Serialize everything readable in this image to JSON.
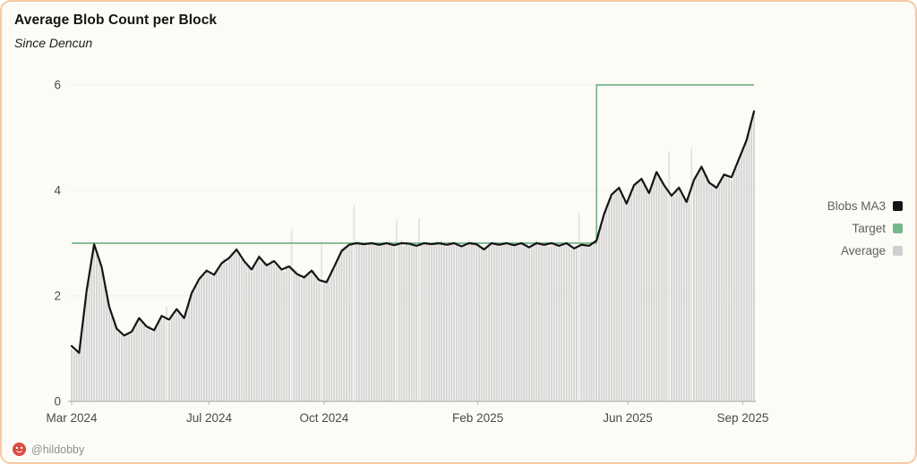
{
  "card": {
    "title": "Average Blob Count per Block",
    "subtitle": "Since Dencun",
    "author": "@hildobby"
  },
  "legend": [
    {
      "label": "Blobs MA3",
      "color": "#151515"
    },
    {
      "label": "Target",
      "color": "#76b789"
    },
    {
      "label": "Average",
      "color": "#cfcfcf"
    }
  ],
  "chart_data": {
    "type": "line",
    "title": "Average Blob Count per Block",
    "subtitle": "Since Dencun",
    "x_start": "2024-03-13",
    "x_step_days": 6,
    "x_total_days": 546,
    "ylim": [
      0,
      6
    ],
    "yticks": [
      0,
      2,
      4,
      6
    ],
    "xticks": [
      {
        "label": "Mar 2024",
        "day": 0
      },
      {
        "label": "Jul 2024",
        "day": 110
      },
      {
        "label": "Oct 2024",
        "day": 202
      },
      {
        "label": "Feb 2025",
        "day": 325
      },
      {
        "label": "Jun 2025",
        "day": 445
      },
      {
        "label": "Sep 2025",
        "day": 537
      }
    ],
    "grid": "horizontal-faint",
    "legend_position": "right",
    "series": [
      {
        "name": "Blobs MA3",
        "type": "line",
        "color": "#151515",
        "values": [
          1.05,
          0.92,
          2.1,
          2.98,
          2.55,
          1.8,
          1.38,
          1.25,
          1.32,
          1.58,
          1.42,
          1.35,
          1.62,
          1.55,
          1.75,
          1.58,
          2.05,
          2.32,
          2.48,
          2.4,
          2.62,
          2.72,
          2.88,
          2.66,
          2.5,
          2.74,
          2.58,
          2.66,
          2.5,
          2.56,
          2.42,
          2.35,
          2.48,
          2.3,
          2.26,
          2.55,
          2.85,
          2.97,
          3.0,
          2.98,
          3.0,
          2.97,
          3.0,
          2.96,
          3.0,
          2.99,
          2.95,
          3.0,
          2.98,
          3.0,
          2.97,
          3.0,
          2.94,
          3.0,
          2.98,
          2.88,
          3.0,
          2.97,
          3.0,
          2.96,
          3.0,
          2.92,
          3.0,
          2.97,
          3.0,
          2.95,
          3.0,
          2.9,
          2.97,
          2.95,
          3.05,
          3.55,
          3.92,
          4.05,
          3.75,
          4.1,
          4.22,
          3.95,
          4.35,
          4.1,
          3.9,
          4.05,
          3.78,
          4.2,
          4.45,
          4.15,
          4.05,
          4.3,
          4.25,
          4.6,
          4.95,
          5.5
        ]
      },
      {
        "name": "Target",
        "type": "step",
        "color": "#76b789",
        "segments": [
          {
            "from_day": 0,
            "to_day": 420,
            "value": 3
          },
          {
            "from_day": 420,
            "to_day": 546,
            "value": 6
          }
        ]
      },
      {
        "name": "Average",
        "type": "bar",
        "color": "#d4d4d4",
        "spike_color": "#e4e4e4",
        "note": "daily average bars tracking the Blobs MA3 values"
      }
    ]
  }
}
